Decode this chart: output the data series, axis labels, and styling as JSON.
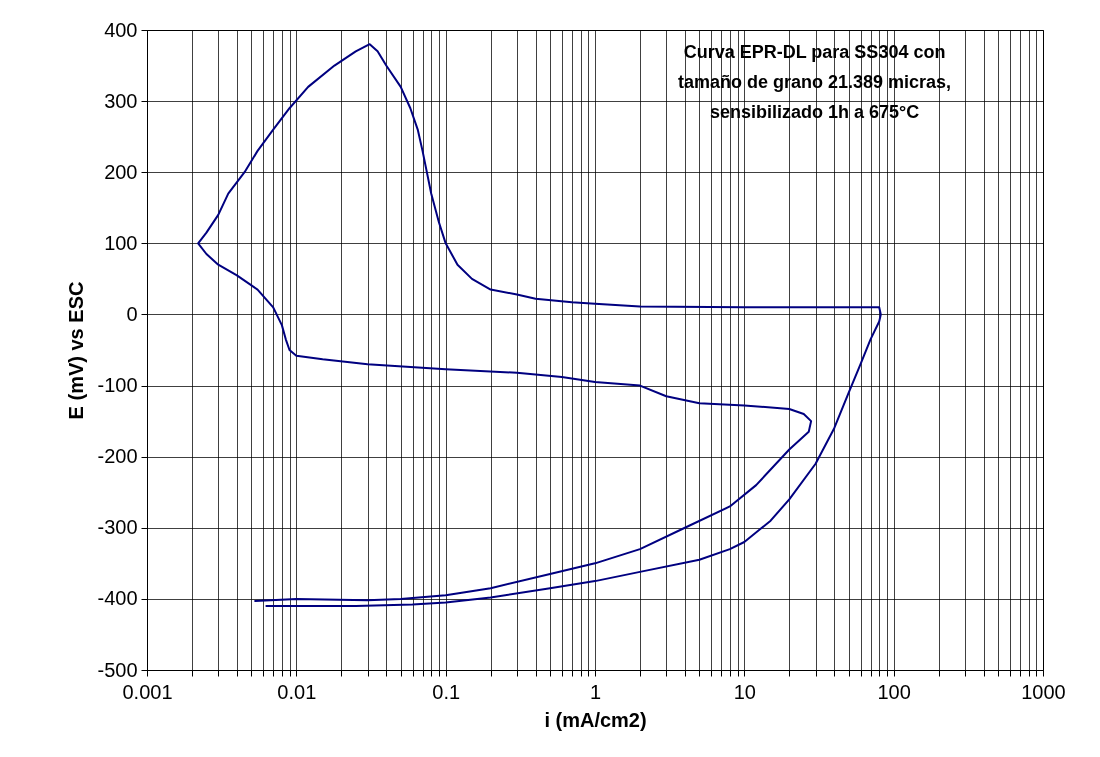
{
  "chart_data": {
    "type": "line",
    "xlabel": "i (mA/cm2)",
    "ylabel": "E (mV) vs ESC",
    "annotations": [
      "Curva EPR-DL para SS304 con tamaño de grano 21.389 micras, sensibilizado 1h a 675°C"
    ],
    "log": "x",
    "grid": true,
    "xlim": [
      0.001,
      1000
    ],
    "ylim": [
      -500,
      400
    ],
    "xticks": [
      0.001,
      {
        "value": 0.002,
        "label": null
      },
      {
        "value": 0.003,
        "label": null
      },
      {
        "value": 0.004,
        "label": null
      },
      {
        "value": 0.005,
        "label": null
      },
      {
        "value": 0.006,
        "label": null
      },
      {
        "value": 0.007,
        "label": null
      },
      {
        "value": 0.008,
        "label": null
      },
      {
        "value": 0.009,
        "label": null
      },
      0.01,
      {
        "value": 0.02,
        "label": null
      },
      {
        "value": 0.03,
        "label": null
      },
      {
        "value": 0.04,
        "label": null
      },
      {
        "value": 0.05,
        "label": null
      },
      {
        "value": 0.06,
        "label": null
      },
      {
        "value": 0.07,
        "label": null
      },
      {
        "value": 0.08,
        "label": null
      },
      {
        "value": 0.09,
        "label": null
      },
      0.1,
      {
        "value": 0.2,
        "label": null
      },
      {
        "value": 0.3,
        "label": null
      },
      {
        "value": 0.4,
        "label": null
      },
      {
        "value": 0.5,
        "label": null
      },
      {
        "value": 0.6,
        "label": null
      },
      {
        "value": 0.7,
        "label": null
      },
      {
        "value": 0.8,
        "label": null
      },
      {
        "value": 0.9,
        "label": null
      },
      1,
      {
        "value": 2,
        "label": null
      },
      {
        "value": 3,
        "label": null
      },
      {
        "value": 4,
        "label": null
      },
      {
        "value": 5,
        "label": null
      },
      {
        "value": 6,
        "label": null
      },
      {
        "value": 7,
        "label": null
      },
      {
        "value": 8,
        "label": null
      },
      {
        "value": 9,
        "label": null
      },
      10,
      {
        "value": 20,
        "label": null
      },
      {
        "value": 30,
        "label": null
      },
      {
        "value": 40,
        "label": null
      },
      {
        "value": 50,
        "label": null
      },
      {
        "value": 60,
        "label": null
      },
      {
        "value": 70,
        "label": null
      },
      {
        "value": 80,
        "label": null
      },
      {
        "value": 90,
        "label": null
      },
      100,
      {
        "value": 200,
        "label": null
      },
      {
        "value": 300,
        "label": null
      },
      {
        "value": 400,
        "label": null
      },
      {
        "value": 500,
        "label": null
      },
      {
        "value": 600,
        "label": null
      },
      {
        "value": 700,
        "label": null
      },
      {
        "value": 800,
        "label": null
      },
      {
        "value": 900,
        "label": null
      },
      1000
    ],
    "yticks": [
      -500,
      -400,
      -300,
      -200,
      -100,
      0,
      100,
      200,
      300,
      400
    ],
    "marker": "none",
    "line_style": "solid",
    "series": [
      {
        "color": "#000080",
        "x": [
          0.0063,
          0.025,
          0.06,
          0.1,
          0.2,
          0.5,
          1,
          2,
          5,
          8,
          10,
          15,
          20,
          30,
          40,
          50,
          60,
          70,
          80,
          82,
          80,
          50,
          10,
          2,
          1,
          0.7,
          0.4,
          0.3,
          0.2,
          0.15,
          0.12,
          0.1,
          0.09,
          0.08,
          0.07,
          0.065,
          0.058,
          0.05,
          0.04,
          0.035,
          0.031,
          0.025,
          0.018,
          0.012,
          0.009,
          0.007,
          0.0055,
          0.0045,
          0.0035,
          0.003,
          0.0025,
          0.0022,
          0.0025,
          0.003,
          0.004,
          0.0055,
          0.007,
          0.008,
          0.0085,
          0.009,
          0.01,
          0.015,
          0.03,
          0.1,
          0.3,
          0.6,
          1,
          2,
          3,
          5,
          10,
          20,
          25,
          28,
          27,
          20,
          12,
          8,
          4,
          2,
          1,
          0.5,
          0.2,
          0.1,
          0.05,
          0.03,
          0.01,
          0.0053
        ],
        "values": [
          -410,
          -410,
          -408,
          -405,
          -398,
          -385,
          -375,
          -362,
          -345,
          -330,
          -320,
          -290,
          -260,
          -210,
          -160,
          -110,
          -70,
          -35,
          -10,
          0,
          10,
          10,
          10,
          11,
          15,
          17,
          22,
          28,
          35,
          50,
          70,
          100,
          130,
          170,
          230,
          260,
          290,
          320,
          350,
          370,
          380,
          370,
          350,
          320,
          290,
          260,
          230,
          200,
          170,
          140,
          115,
          100,
          85,
          70,
          55,
          35,
          10,
          -15,
          -35,
          -50,
          -58,
          -63,
          -70,
          -77,
          -82,
          -88,
          -95,
          -100,
          -115,
          -125,
          -128,
          -133,
          -140,
          -150,
          -165,
          -190,
          -240,
          -270,
          -300,
          -330,
          -350,
          -365,
          -385,
          -395,
          -400,
          -402,
          -400,
          -403
        ]
      }
    ]
  }
}
